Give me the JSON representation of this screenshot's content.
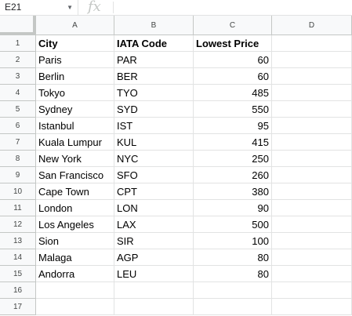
{
  "formula_bar": {
    "cell_ref": "E21",
    "fx_label": "fx",
    "formula": ""
  },
  "columns": [
    "A",
    "B",
    "C",
    "D"
  ],
  "row_numbers": [
    "1",
    "2",
    "3",
    "4",
    "5",
    "6",
    "7",
    "8",
    "9",
    "10",
    "11",
    "12",
    "13",
    "14",
    "15",
    "16",
    "17"
  ],
  "headers": [
    "City",
    "IATA Code",
    "Lowest Price"
  ],
  "rows": [
    [
      "Paris",
      "PAR",
      "60"
    ],
    [
      "Berlin",
      "BER",
      "60"
    ],
    [
      "Tokyo",
      "TYO",
      "485"
    ],
    [
      "Sydney",
      "SYD",
      "550"
    ],
    [
      "Istanbul",
      "IST",
      "95"
    ],
    [
      "Kuala Lumpur",
      "KUL",
      "415"
    ],
    [
      "New York",
      "NYC",
      "250"
    ],
    [
      "San Francisco",
      "SFO",
      "260"
    ],
    [
      "Cape Town",
      "CPT",
      "380"
    ],
    [
      "London",
      "LON",
      "90"
    ],
    [
      "Los Angeles",
      "LAX",
      "500"
    ],
    [
      "Sion",
      "SIR",
      "100"
    ],
    [
      "Malaga",
      "AGP",
      "80"
    ],
    [
      "Andorra",
      "LEU",
      "80"
    ]
  ]
}
